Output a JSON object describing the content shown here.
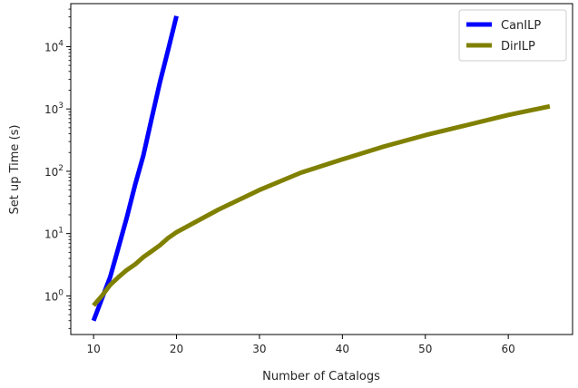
{
  "chart_data": {
    "type": "line",
    "title": "",
    "xlabel": "Number of Catalogs",
    "ylabel": "Set up Time (s)",
    "y_scale": "log",
    "xlim": [
      7.25,
      67.75
    ],
    "ylim": [
      0.24,
      49000
    ],
    "x_ticks": [
      {
        "value": 10,
        "label": "10"
      },
      {
        "value": 20,
        "label": "20"
      },
      {
        "value": 30,
        "label": "30"
      },
      {
        "value": 40,
        "label": "40"
      },
      {
        "value": 50,
        "label": "50"
      },
      {
        "value": 60,
        "label": "60"
      }
    ],
    "y_ticks": [
      {
        "value": 1,
        "base": "10",
        "exp": "0"
      },
      {
        "value": 10,
        "base": "10",
        "exp": "1"
      },
      {
        "value": 100,
        "base": "10",
        "exp": "2"
      },
      {
        "value": 1000,
        "base": "10",
        "exp": "3"
      },
      {
        "value": 10000,
        "base": "10",
        "exp": "4"
      }
    ],
    "grid": false,
    "legend_position": "top-right",
    "series": [
      {
        "name": "CanILP",
        "color": "#0000ff",
        "x": [
          10,
          11,
          12,
          13,
          14,
          15,
          16,
          17,
          18,
          19,
          20
        ],
        "y": [
          0.4,
          0.9,
          2.0,
          6.0,
          18,
          60,
          180,
          700,
          2700,
          9000,
          31000
        ]
      },
      {
        "name": "DirILP",
        "color": "#808000",
        "x": [
          10,
          11,
          12,
          13,
          14,
          15,
          16,
          17,
          18,
          19,
          20,
          25,
          30,
          35,
          40,
          45,
          50,
          55,
          60,
          65
        ],
        "y": [
          0.7,
          1.0,
          1.5,
          2.0,
          2.6,
          3.2,
          4.2,
          5.2,
          6.5,
          8.5,
          10.5,
          24,
          50,
          95,
          155,
          250,
          380,
          550,
          800,
          1100
        ]
      }
    ]
  }
}
